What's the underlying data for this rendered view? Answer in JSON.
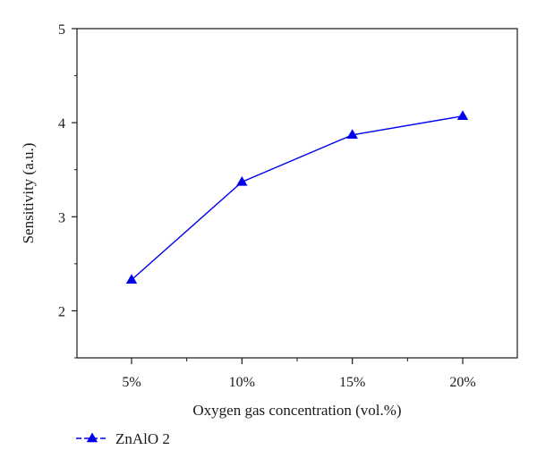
{
  "chart_data": {
    "type": "line",
    "title": "",
    "xlabel": "Oxygen gas concentration (vol.%)",
    "ylabel": "Sensitivity (a.u.)",
    "categories": [
      "5%",
      "10%",
      "15%",
      "20%"
    ],
    "series": [
      {
        "name": "ZnAlO 2",
        "values": [
          2.33,
          3.37,
          3.87,
          4.07
        ],
        "color": "#0000ee",
        "marker": "triangle"
      }
    ],
    "ylim": [
      1.5,
      5
    ],
    "yticks": [
      2,
      3,
      4,
      5
    ],
    "grid": false,
    "legend": "bottom-left"
  }
}
